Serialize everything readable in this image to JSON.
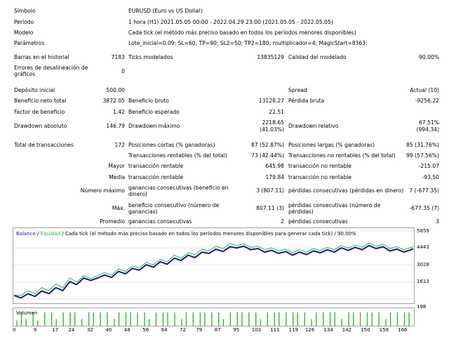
{
  "report": {
    "symbol_label": "Símbolo",
    "symbol_value": "EURUSD (Euro vs US Dollar)",
    "period_label": "Período",
    "period_value": "1 hora (H1) 2021.05.05 00:00 - 2022.04.29 23:00 (2021.05.05 - 2022.05.05)",
    "model_label": "Modelo",
    "model_value": "Cada tick (el método más preciso basado en todos los períodos menores disponibles)",
    "params_label": "Parámetros",
    "params_value": "Lote_inicial=0.09; SL=60; TP=90; SL2=50; TP2=180; multiplicador=4; MagicStart=8363;",
    "bars_label": "Barras en el historial",
    "bars_value": "7183",
    "ticks_label": "Ticks modelados",
    "ticks_value": "13835129",
    "quality_label": "Calidad del modelado",
    "quality_value": "90.00%",
    "errors_label": "Errores de desalineación de gráficos",
    "errors_value": "0",
    "deposit_label": "Depósito inicial",
    "deposit_value": "500.00",
    "spread_label": "Spread",
    "spread_value": "Actual (10)",
    "net_profit_label": "Beneficio neto total",
    "net_profit_value": "3872.05",
    "gross_profit_label": "Beneficio bruto",
    "gross_profit_value": "13128.27",
    "gross_loss_label": "Pérdida bruta",
    "gross_loss_value": "-9256.22",
    "profit_factor_label": "Factor de beneficio",
    "profit_factor_value": "1.42",
    "expected_payoff_label": "Beneficio esperado",
    "expected_payoff_value": "22.51",
    "abs_dd_label": "Drawdown absoluto",
    "abs_dd_value": "146.79",
    "max_dd_label": "Drawdown máximo",
    "max_dd_value": "2218.65",
    "max_dd_pct": "(41.03%)",
    "rel_dd_label": "Drawdown relativo",
    "rel_dd_value": "67.51%",
    "rel_dd_amount": "(994.34)",
    "total_trades_label": "Total de transacciones",
    "total_trades_value": "172",
    "short_label": "Posiciones cortas (% ganadoras)",
    "short_value": "87 (52.87%)",
    "long_label": "Posiciones largas (% ganadoras)",
    "long_value": "85 (31.76%)",
    "profit_trades_label": "Transacciones rentables (% del total)",
    "profit_trades_value": "73 (42.44%)",
    "loss_trades_label": "Transacciones no rentables (% del total)",
    "loss_trades_value": "99 (57.56%)",
    "largest_label": "Mayor",
    "largest_profit_label": "transacción rentable",
    "largest_profit_value": "645.98",
    "largest_loss_label": "transacción no rentable",
    "largest_loss_value": "-215.07",
    "average_label": "Media",
    "average_profit_label": "transacción rentable",
    "average_profit_value": "179.84",
    "average_loss_label": "transacción no rentable",
    "average_loss_value": "-93.50",
    "max_number_label": "Número máximo",
    "max_consec_wins_label": "ganancias consecutivas (beneficio en dinero)",
    "max_consec_wins_value": "3 (807.11)",
    "max_consec_losses_label": "pérdidas consecutivas (pérdidas en dinero)",
    "max_consec_losses_value": "7 (-677.35)",
    "max_label": "Máx.",
    "max_consec_profit_label": "beneficio consecutivo (número de ganancias)",
    "max_consec_profit_value": "807.11 (3)",
    "max_consec_loss_label": "pérdidas consecutivas (número de pérdidas)",
    "max_consec_loss_value": "-677.35 (7)",
    "avg_label": "Promedio",
    "avg_consec_wins_label": "ganancias consecutivas",
    "avg_consec_wins_value": "2",
    "avg_consec_losses_label": "pérdidas consecutivas",
    "avg_consec_losses_value": "3"
  },
  "chart_data": {
    "type": "line",
    "legend": {
      "balance": "Balance",
      "sep1": " / ",
      "equity": "Equidad",
      "sep2": " / ",
      "text": "Cada tick (el método más preciso basado en todos los períodos menores disponibles para generar cada tick)",
      "sep3": " / ",
      "quality": "90.00%"
    },
    "ylim": [
      0,
      5859
    ],
    "y_ticks": [
      5859,
      4443,
      3028,
      1613,
      198
    ],
    "x_ticks": [
      0,
      9,
      17,
      24,
      32,
      40,
      48,
      56,
      64,
      72,
      79,
      87,
      95,
      103,
      111,
      119,
      126,
      134,
      142,
      150,
      158,
      166
    ],
    "xlim": [
      0,
      172
    ],
    "series": [
      {
        "name": "Balance",
        "color": "#1a1a8c",
        "x": [
          0,
          3,
          6,
          9,
          12,
          15,
          18,
          21,
          24,
          27,
          30,
          33,
          36,
          39,
          42,
          45,
          48,
          51,
          54,
          57,
          60,
          63,
          66,
          69,
          72,
          75,
          78,
          81,
          84,
          87,
          90,
          93,
          96,
          99,
          102,
          105,
          108,
          111,
          114,
          117,
          120,
          123,
          126,
          129,
          132,
          135,
          138,
          141,
          144,
          147,
          150,
          153,
          156,
          159,
          162,
          165,
          168,
          172
        ],
        "values": [
          500,
          300,
          650,
          420,
          880,
          650,
          1150,
          900,
          1650,
          1400,
          1950,
          1750,
          1950,
          2200,
          2000,
          2500,
          2300,
          2750,
          2600,
          3050,
          2850,
          3300,
          3100,
          3600,
          3400,
          3850,
          3650,
          4100,
          4000,
          4350,
          4150,
          4550,
          4450,
          4600,
          4300,
          4400,
          4100,
          4250,
          4000,
          4150,
          3850,
          4100,
          3900,
          4200,
          4050,
          4300,
          4100,
          4450,
          4250,
          4500,
          4300,
          4650,
          4400,
          4550,
          4200,
          4350,
          4100,
          4372
        ]
      },
      {
        "name": "Equidad",
        "color": "#2fb82f",
        "x": [
          0,
          3,
          6,
          9,
          12,
          15,
          18,
          21,
          24,
          27,
          30,
          33,
          36,
          39,
          42,
          45,
          48,
          51,
          54,
          57,
          60,
          63,
          66,
          69,
          72,
          75,
          78,
          81,
          84,
          87,
          90,
          93,
          96,
          99,
          102,
          105,
          108,
          111,
          114,
          117,
          120,
          123,
          126,
          129,
          132,
          135,
          138,
          141,
          144,
          147,
          150,
          153,
          156,
          159,
          162,
          165,
          168,
          172
        ],
        "values": [
          500,
          500,
          900,
          650,
          1150,
          900,
          1450,
          1150,
          1950,
          1600,
          2150,
          1900,
          2150,
          2400,
          2200,
          2700,
          2500,
          2950,
          2800,
          3250,
          3050,
          3500,
          3300,
          3850,
          3600,
          4050,
          3900,
          4350,
          4200,
          4600,
          4400,
          4800,
          4650,
          4800,
          4500,
          4600,
          4300,
          4450,
          4200,
          4350,
          4050,
          4300,
          4100,
          4400,
          4250,
          4500,
          4300,
          4650,
          4450,
          4700,
          4500,
          4850,
          4600,
          4750,
          4400,
          4550,
          4300,
          4550
        ]
      }
    ],
    "volume": {
      "label": "Volumen",
      "color": "#2fb82f",
      "bars_x": [
        1,
        3,
        5,
        8,
        10,
        13,
        16,
        18,
        21,
        24,
        26,
        29,
        32,
        34,
        37,
        40,
        43,
        45,
        48,
        50,
        53,
        56,
        58,
        61,
        64,
        66,
        69,
        72,
        74,
        77,
        80,
        82,
        85,
        88,
        90,
        93,
        96,
        98,
        101,
        104,
        106,
        109,
        112,
        114,
        117,
        120,
        122,
        125,
        128,
        130,
        133,
        136,
        138,
        141,
        144,
        146,
        149,
        152,
        154,
        157,
        160,
        162,
        165,
        168,
        170
      ],
      "bars_h": [
        0.4,
        1,
        0.5,
        1,
        0.4,
        1,
        1,
        0.5,
        1,
        1,
        1,
        0.5,
        1,
        1,
        1,
        1,
        0.5,
        1,
        1,
        1,
        1,
        1,
        0.5,
        1,
        1,
        1,
        1,
        0.5,
        1,
        1,
        1,
        1,
        1,
        1,
        0.5,
        1,
        1,
        1,
        1,
        1,
        0.5,
        1,
        1,
        1,
        1,
        1,
        1,
        1,
        0.5,
        1,
        1,
        1,
        1,
        0.5,
        1,
        1,
        1,
        1,
        1,
        1,
        0.5,
        1,
        1,
        1,
        1
      ]
    }
  }
}
